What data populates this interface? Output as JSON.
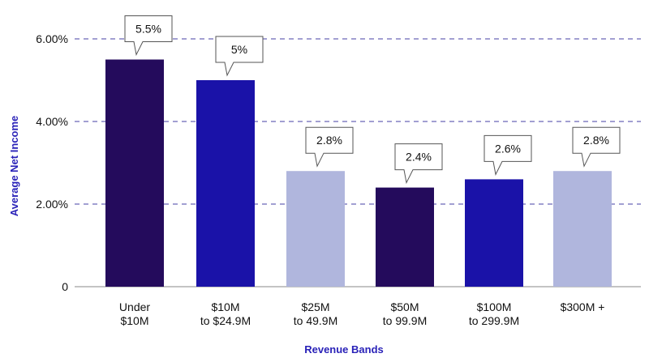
{
  "chart_data": {
    "type": "bar",
    "categories": [
      [
        "Under",
        "$10M"
      ],
      [
        "$10M",
        "to $24.9M"
      ],
      [
        "$25M",
        "to 49.9M"
      ],
      [
        "$50M",
        "to 99.9M"
      ],
      [
        "$100M",
        "to 299.9M"
      ],
      [
        "$300M +"
      ]
    ],
    "values": [
      5.5,
      5.0,
      2.8,
      2.4,
      2.6,
      2.8
    ],
    "data_labels": [
      "5.5%",
      "5%",
      "2.8%",
      "2.4%",
      "2.6%",
      "2.8%"
    ],
    "bar_colors": [
      "#240b5c",
      "#1a12a8",
      "#b0b6dd",
      "#240b5c",
      "#1a12a8",
      "#b0b6dd"
    ],
    "xlabel": "Revenue Bands",
    "ylabel": "Average Net Income",
    "ylim": [
      0,
      6
    ],
    "yticks": [
      0,
      2,
      4,
      6
    ],
    "ytick_labels": [
      "0",
      "2.00%",
      "4.00%",
      "6.00%"
    ],
    "grid": true,
    "label_color": "#2a22b8"
  }
}
